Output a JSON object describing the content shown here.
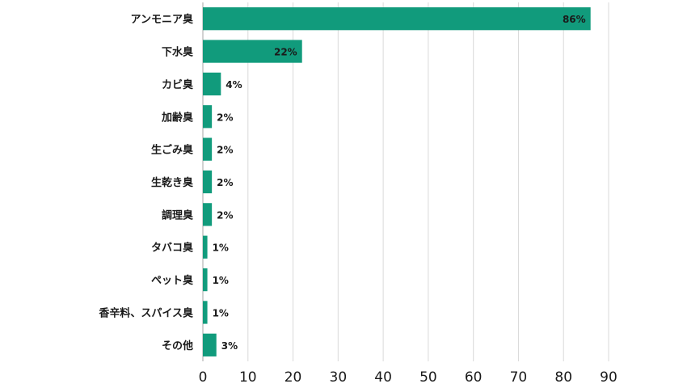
{
  "chart_data": {
    "type": "bar",
    "orientation": "horizontal",
    "categories": [
      "アンモニア臭",
      "下水臭",
      "カビ臭",
      "加齢臭",
      "生ごみ臭",
      "生乾き臭",
      "調理臭",
      "タバコ臭",
      "ペット臭",
      "香辛料、スパイス臭",
      "その他"
    ],
    "values": [
      86,
      22,
      4,
      2,
      2,
      2,
      2,
      1,
      1,
      1,
      3
    ],
    "value_labels": [
      "86%",
      "22%",
      "4%",
      "2%",
      "2%",
      "2%",
      "2%",
      "1%",
      "1%",
      "1%",
      "3%"
    ],
    "xlim": [
      0,
      90
    ],
    "xticks": [
      0,
      10,
      20,
      30,
      40,
      50,
      60,
      70,
      80,
      90
    ],
    "grid": true,
    "bar_color": "#119b7c",
    "title": "",
    "xlabel": "",
    "ylabel": ""
  }
}
